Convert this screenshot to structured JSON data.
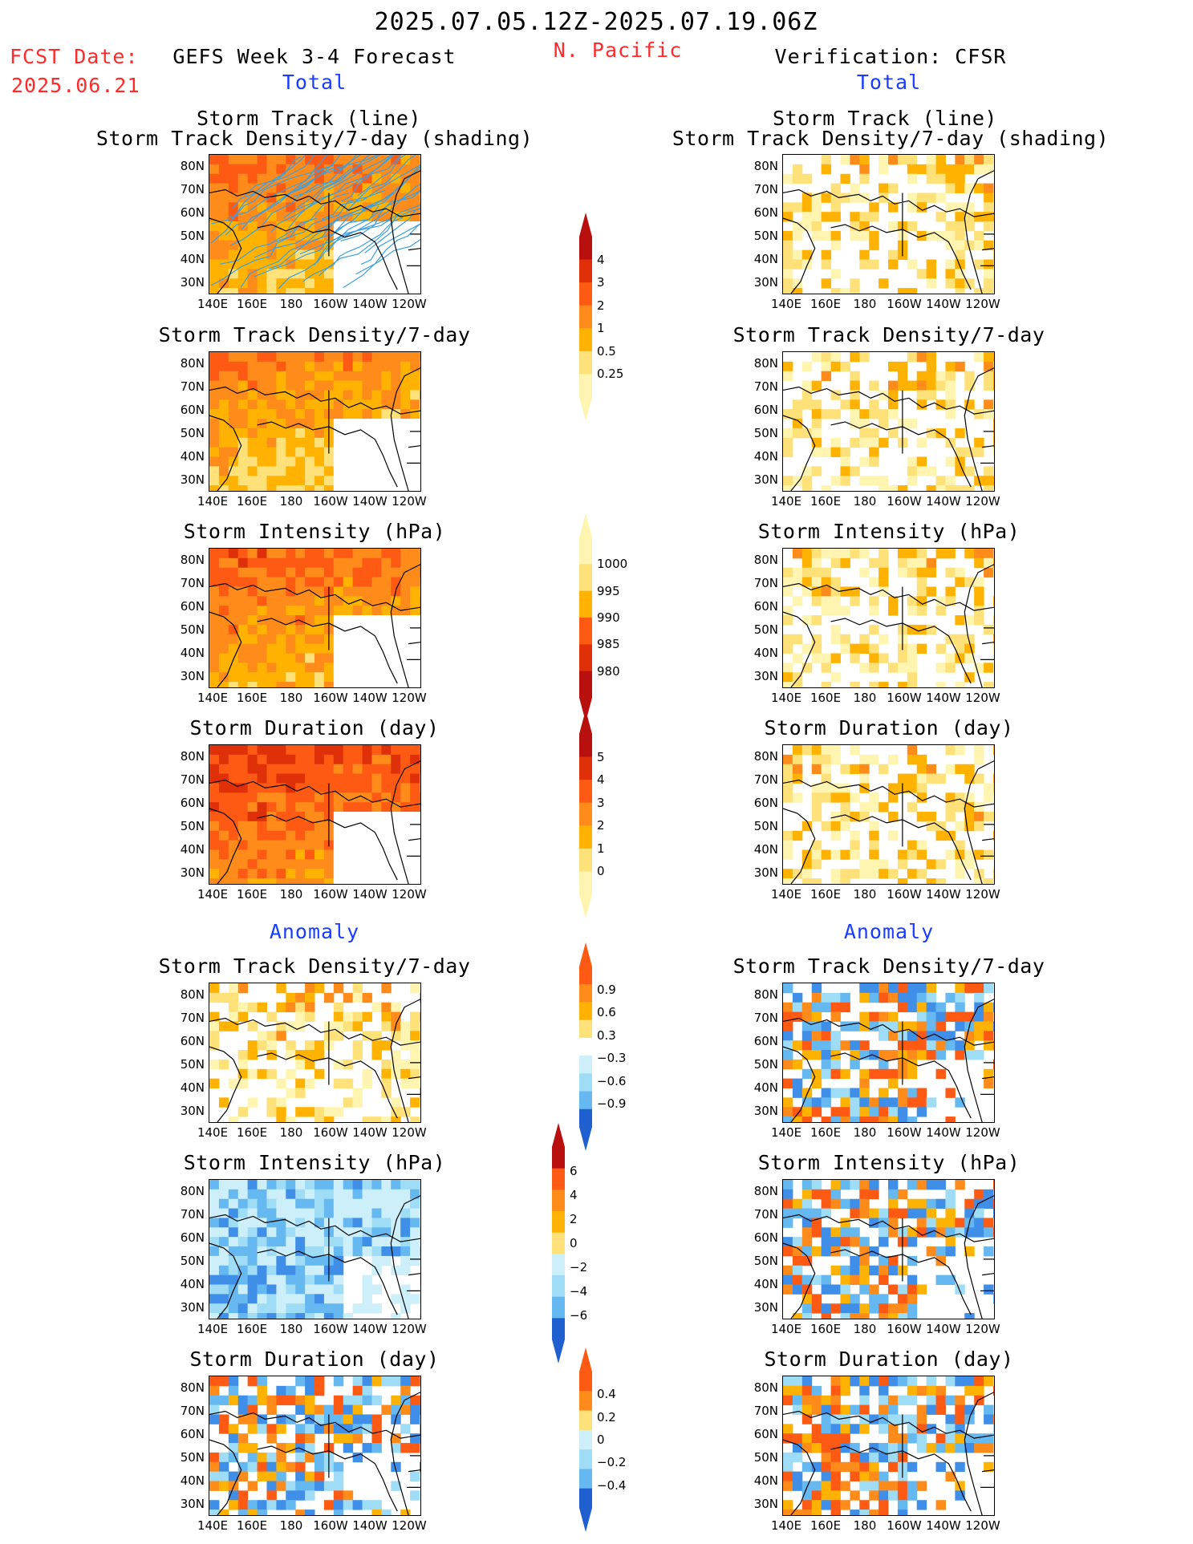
{
  "header": {
    "date_range": "2025.07.05.12Z-2025.07.19.06Z",
    "fcst_date_label": "FCST Date:",
    "fcst_date_value": "2025.06.21",
    "left_model": "GEFS Week 3-4 Forecast",
    "region": "N. Pacific",
    "right_model": "Verification: CFSR",
    "total_left": "Total",
    "total_right": "Total",
    "anomaly_left": "Anomaly",
    "anomaly_right": "Anomaly"
  },
  "axes": {
    "y_ticks": [
      "80N",
      "70N",
      "60N",
      "50N",
      "40N",
      "30N"
    ],
    "x_ticks": [
      "140E",
      "160E",
      "180",
      "160W",
      "140W",
      "120W"
    ]
  },
  "panel_titles": {
    "track_line": "Storm Track (line)",
    "track_shading": "Storm Track Density/7-day (shading)",
    "density": "Storm Track Density/7-day",
    "intensity": "Storm Intensity (hPa)",
    "duration": "Storm Duration (day)"
  },
  "colorbars": {
    "density_total": [
      "4",
      "3",
      "2",
      "1",
      "0.5",
      "0.25"
    ],
    "intensity_total": [
      "1000",
      "995",
      "990",
      "985",
      "980"
    ],
    "duration_total": [
      "5",
      "4",
      "3",
      "2",
      "1",
      "0"
    ],
    "density_anom": [
      "0.9",
      "0.6",
      "0.3",
      "−0.3",
      "−0.6",
      "−0.9"
    ],
    "intensity_anom": [
      "6",
      "4",
      "2",
      "0",
      "−2",
      "−4",
      "−6"
    ],
    "duration_anom": [
      "0.4",
      "0.2",
      "0",
      "−0.2",
      "−0.4"
    ]
  },
  "colors": {
    "warm": [
      "#fff5b0",
      "#ffe17a",
      "#ffb300",
      "#ff8c1a",
      "#ff5a14",
      "#e0300a",
      "#b80f0f"
    ],
    "cool": [
      "#cceffa",
      "#9fdcf5",
      "#66b8f0",
      "#3f8fe8",
      "#1f5fd0"
    ],
    "track_line": "#3aa0e0"
  }
}
